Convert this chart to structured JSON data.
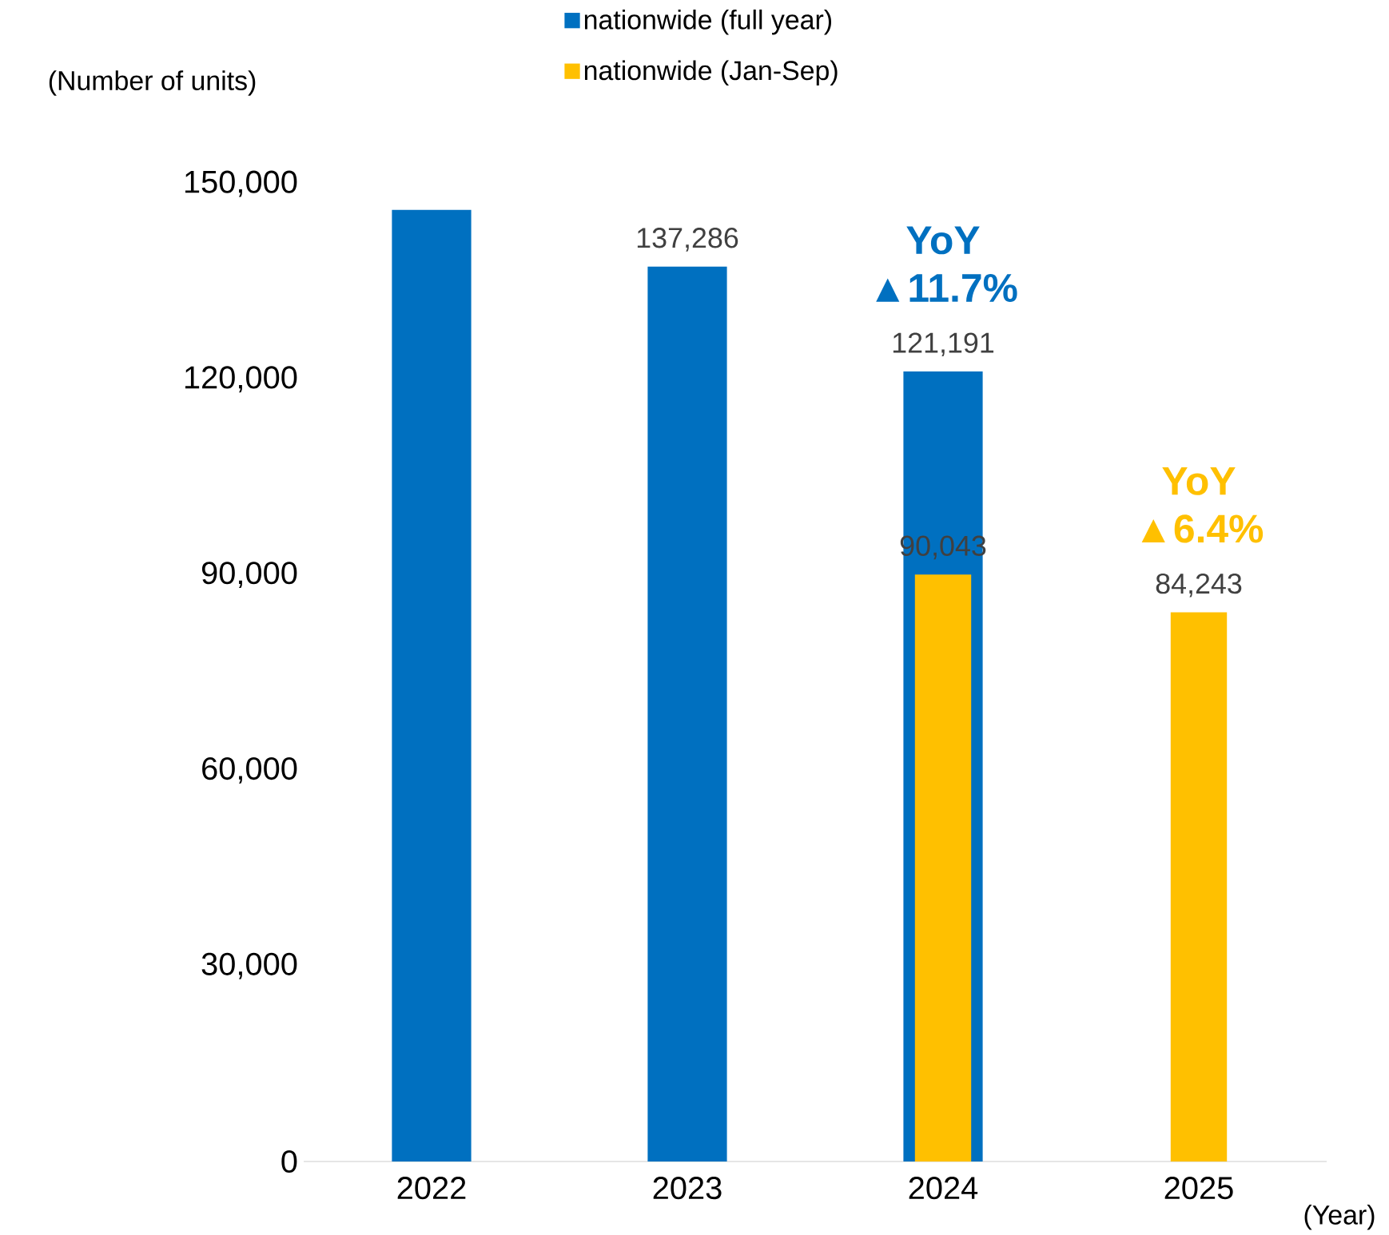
{
  "chart_data": {
    "type": "bar",
    "ylabel": "(Number of units)",
    "xlabel": "(Year)",
    "categories": [
      "2022",
      "2023",
      "2024",
      "2025"
    ],
    "series": [
      {
        "name": "nationwide (full year)",
        "color": "#0070c0",
        "values": [
          146000,
          137286,
          121191,
          null
        ],
        "value_labels": [
          null,
          "137,286",
          "121,191",
          null
        ]
      },
      {
        "name": "nationwide (Jan-Sep)",
        "color": "#ffc000",
        "values": [
          null,
          null,
          90043,
          84243
        ],
        "value_labels": [
          null,
          null,
          "90,043",
          "84,243"
        ]
      }
    ],
    "ylim": [
      0,
      150000
    ],
    "yticks": [
      {
        "value": 0,
        "label": "0"
      },
      {
        "value": 30000,
        "label": "30,000"
      },
      {
        "value": 60000,
        "label": "60,000"
      },
      {
        "value": 90000,
        "label": "90,000"
      },
      {
        "value": 120000,
        "label": "120,000"
      },
      {
        "value": 150000,
        "label": "150,000"
      }
    ],
    "annotations": [
      {
        "text": "YoY ▲11.7%",
        "x": "2024",
        "y": 121191
      },
      {
        "text": "YoY ▲6.4%",
        "x": "2025",
        "y": 84243
      }
    ],
    "legend": "top",
    "grid": false
  }
}
